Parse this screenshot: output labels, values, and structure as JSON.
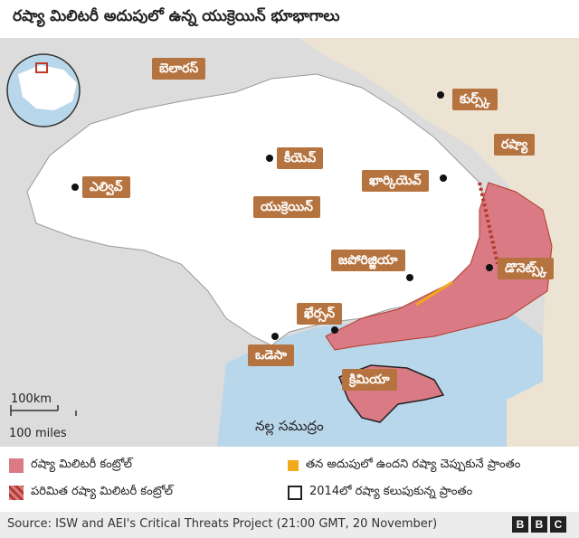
{
  "title": "రష్యా మిలిటరీ అదుపులో ఉన్న యుక్రెయిన్ భూభాగాలు",
  "map": {
    "labels": {
      "belarus": "బెలారస్",
      "kursk": "కుర్స్క్",
      "russia": "రష్యా",
      "kyiv": "కీయెవ్",
      "kharkiv": "ఖార్కియెవ్",
      "lviv": "ఎల్వివ్",
      "ukraine": "యుక్రెయిన్",
      "zaporizhzhia": "జపోరిజ్జియా",
      "donetsk": "డొనెట్స్క్",
      "kherson": "ఖేర్సన్",
      "odesa": "ఒడెసా",
      "crimea": "క్రిమియా",
      "black_sea": "నల్ల సముద్రం"
    },
    "scale": {
      "km": "100km",
      "miles": "100 miles"
    },
    "colors": {
      "russia_land": "#ede3d3",
      "ukraine_land": "#ffffff",
      "sea": "#b9d7ea",
      "russian_control": "#d97a84",
      "label_bg": "#b5733f",
      "claimed": "#f2a91c"
    }
  },
  "legend": {
    "control": "రష్యా మిలిటరీ కంట్రోల్",
    "partial": "పరిమిత రష్యా మిలిటరీ కంట్రోల్",
    "claimed": "తన అదుపులో ఉందని రష్యా చెప్పుకునే ప్రాంతం",
    "annexed_2014": "2014లో రష్యా కలుపుకున్న ప్రాంతం"
  },
  "footer": {
    "source": "Source: ISW and AEI's Critical Threats Project (21:00 GMT, 20 November)",
    "logo": [
      "B",
      "B",
      "C"
    ]
  }
}
